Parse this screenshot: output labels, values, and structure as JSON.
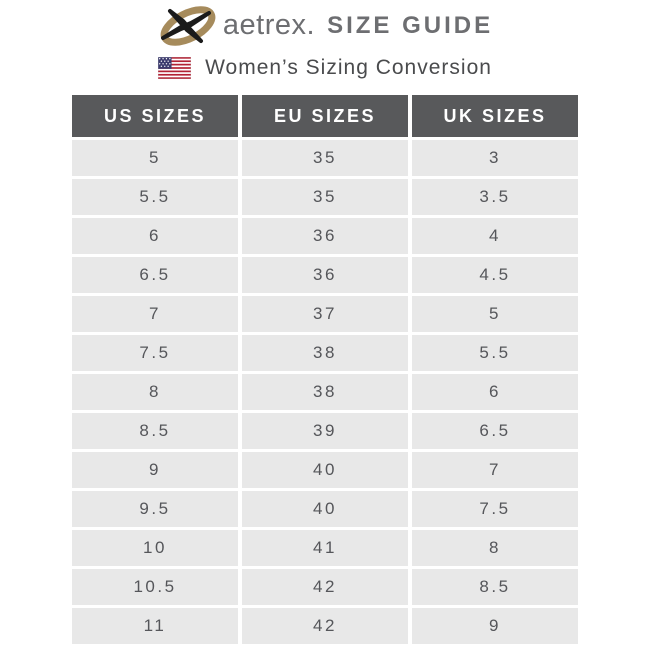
{
  "brand": {
    "name": "aetrex.",
    "title": "SIZE GUIDE",
    "logo_icon": "aetrex-swoosh-icon"
  },
  "subtitle": {
    "flag_icon": "us-flag-icon",
    "text": "Women’s Sizing Conversion"
  },
  "table": {
    "columns": [
      "US SIZES",
      "EU SIZES",
      "UK SIZES"
    ],
    "rows": [
      [
        "5",
        "35",
        "3"
      ],
      [
        "5.5",
        "35",
        "3.5"
      ],
      [
        "6",
        "36",
        "4"
      ],
      [
        "6.5",
        "36",
        "4.5"
      ],
      [
        "7",
        "37",
        "5"
      ],
      [
        "7.5",
        "38",
        "5.5"
      ],
      [
        "8",
        "38",
        "6"
      ],
      [
        "8.5",
        "39",
        "6.5"
      ],
      [
        "9",
        "40",
        "7"
      ],
      [
        "9.5",
        "40",
        "7.5"
      ],
      [
        "10",
        "41",
        "8"
      ],
      [
        "10.5",
        "42",
        "8.5"
      ],
      [
        "11",
        "42",
        "9"
      ]
    ]
  },
  "colors": {
    "header_bg": "#58595b",
    "header_text": "#ffffff",
    "row_bg": "#e8e8e8",
    "cell_text": "#55565a",
    "brand_text": "#6d6e71",
    "logo_ring": "#a68b5c",
    "logo_x": "#1b1b1b",
    "flag_red": "#b22234",
    "flag_blue": "#3c3b6e"
  }
}
